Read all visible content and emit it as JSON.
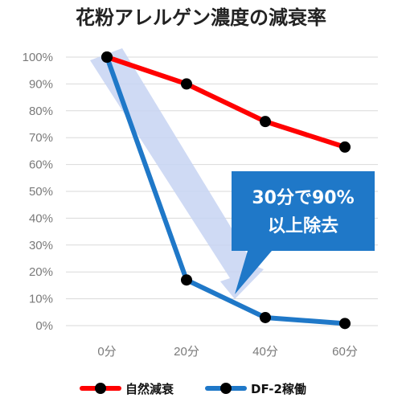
{
  "chart_data": {
    "type": "line",
    "title": "花粉アレルゲン濃度の減衰率",
    "categories": [
      "0分",
      "20分",
      "40分",
      "60分"
    ],
    "yticks": [
      "0%",
      "10%",
      "20%",
      "30%",
      "40%",
      "50%",
      "60%",
      "70%",
      "80%",
      "90%",
      "100%"
    ],
    "ylim": [
      0,
      100
    ],
    "grid": true,
    "legend_position": "bottom",
    "series": [
      {
        "name": "自然減衰",
        "color": "#ff0000",
        "values": [
          100,
          90,
          76,
          66.5
        ]
      },
      {
        "name": "DF-2稼働",
        "color": "#1f78c8",
        "values": [
          100,
          17,
          3,
          0.8
        ]
      }
    ],
    "annotation": {
      "lines": [
        "30分で90%",
        "以上除去"
      ],
      "box_color": "#1f78c8",
      "arrow_color": "#c7d4f2"
    }
  }
}
